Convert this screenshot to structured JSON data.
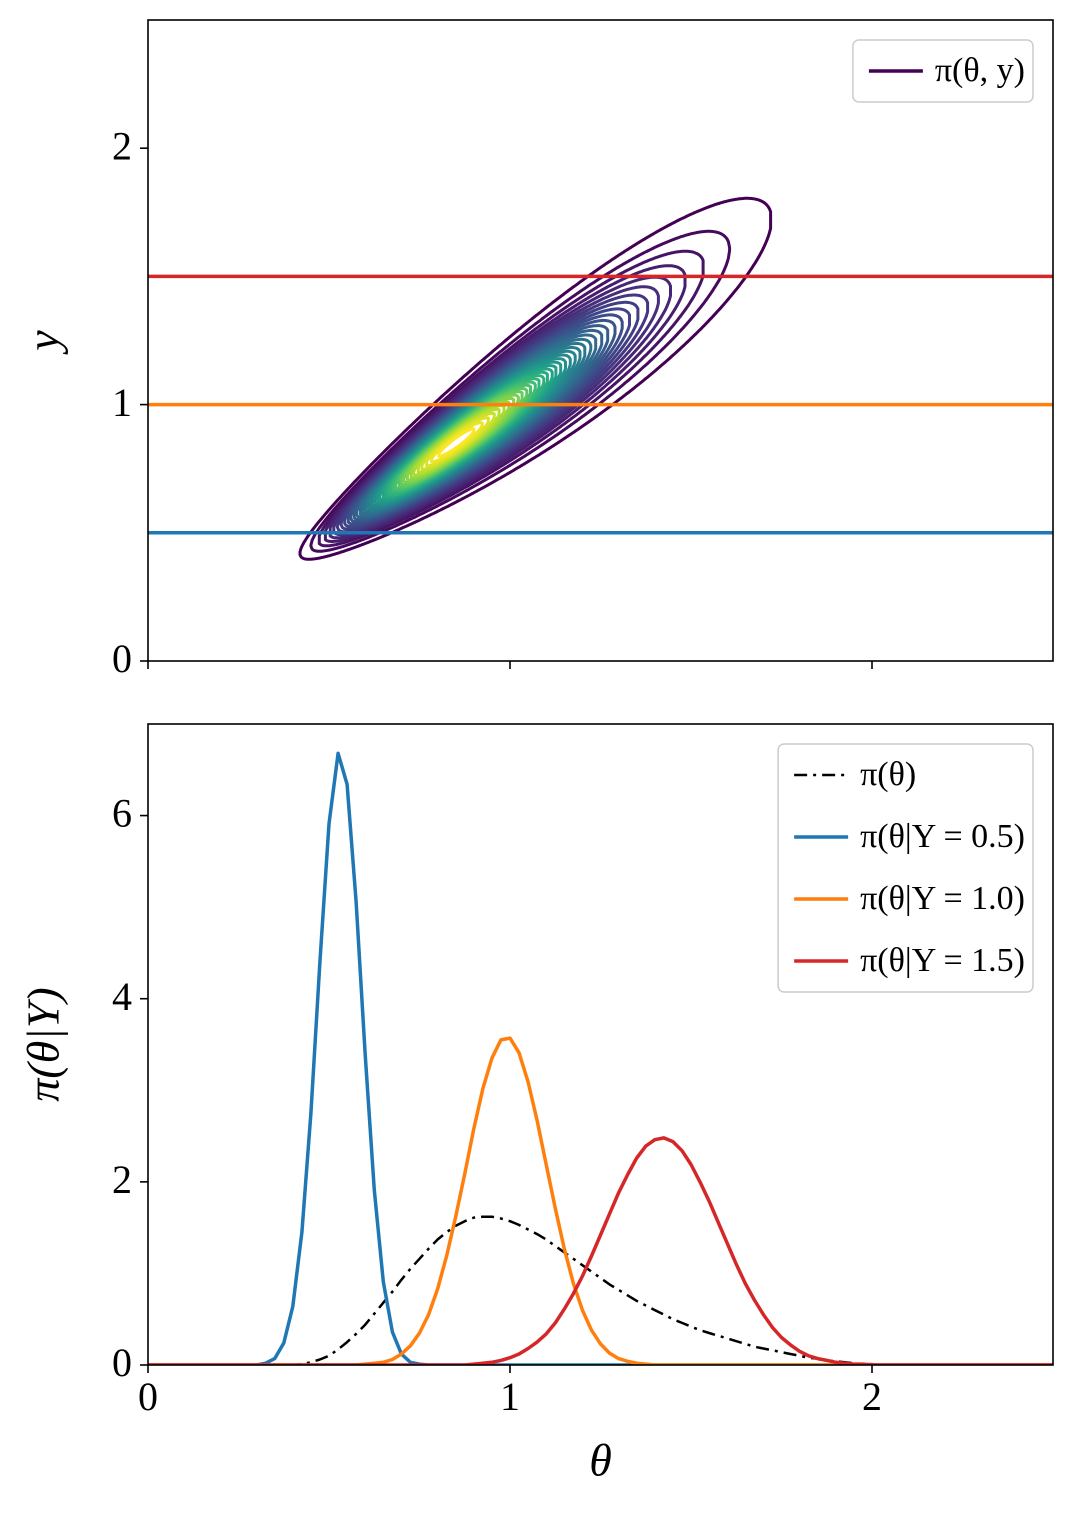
{
  "chart_data": [
    {
      "type": "contour",
      "ylabel": "y",
      "xlim": [
        0,
        2.5
      ],
      "ylim": [
        0,
        2.5
      ],
      "xticks": [
        0,
        1,
        2
      ],
      "yticks": [
        0,
        1,
        2
      ],
      "show_xtick_labels": false,
      "series": [
        {
          "name": "π(θ, y)",
          "color": "#440154"
        }
      ],
      "hlines": [
        {
          "y": 0.5,
          "color": "#1f77b4"
        },
        {
          "y": 1,
          "color": "#ff7f0e"
        },
        {
          "y": 1.5,
          "color": "#d62728"
        }
      ],
      "legend": "upper right"
    },
    {
      "type": "line",
      "xlabel": "θ",
      "ylabel": "π(θ|Y)",
      "xlim": [
        0,
        2.5
      ],
      "ylim": [
        0,
        7
      ],
      "xticks": [
        0,
        1,
        2
      ],
      "yticks": [
        0,
        2,
        4,
        6
      ],
      "x": [
        0,
        0.3,
        0.325,
        0.35,
        0.375,
        0.4,
        0.425,
        0.45,
        0.475,
        0.5,
        0.525,
        0.55,
        0.575,
        0.6,
        0.625,
        0.65,
        0.675,
        0.7,
        0.725,
        0.75,
        0.775,
        0.8,
        0.825,
        0.85,
        0.875,
        0.9,
        0.925,
        0.95,
        0.975,
        1,
        1.025,
        1.05,
        1.075,
        1.1,
        1.125,
        1.15,
        1.175,
        1.2,
        1.225,
        1.25,
        1.275,
        1.3,
        1.325,
        1.35,
        1.375,
        1.4,
        1.425,
        1.45,
        1.475,
        1.5,
        1.525,
        1.55,
        1.575,
        1.6,
        1.625,
        1.65,
        1.675,
        1.7,
        1.725,
        1.75,
        1.775,
        1.8,
        1.825,
        1.85,
        1.875,
        1.9,
        1.925,
        1.95,
        1.975,
        2,
        2.025,
        2.05,
        2.075,
        2.1,
        2.5
      ],
      "series": [
        {
          "name": "π(θ)",
          "color": "#000000",
          "linestyle": "dashdot",
          "values": [
            0,
            0,
            0,
            0,
            0,
            0,
            0.01,
            0.03,
            0.06,
            0.1,
            0.17,
            0.25,
            0.34,
            0.44,
            0.56,
            0.68,
            0.8,
            0.93,
            1.05,
            1.16,
            1.27,
            1.37,
            1.45,
            1.52,
            1.57,
            1.61,
            1.62,
            1.62,
            1.6,
            1.57,
            1.53,
            1.48,
            1.43,
            1.37,
            1.3,
            1.23,
            1.16,
            1.09,
            1.02,
            0.95,
            0.88,
            0.82,
            0.76,
            0.7,
            0.65,
            0.6,
            0.55,
            0.5,
            0.46,
            0.42,
            0.38,
            0.35,
            0.32,
            0.29,
            0.26,
            0.23,
            0.2,
            0.18,
            0.16,
            0.14,
            0.12,
            0.1,
            0.08,
            0.07,
            0.05,
            0.04,
            0.03,
            0.02,
            0.01,
            0.01,
            0,
            0,
            0,
            0,
            0
          ]
        },
        {
          "name": "π(θ|Y = 0.5)",
          "color": "#1f77b4",
          "linestyle": "solid",
          "values": [
            0,
            0,
            0.02,
            0.07,
            0.24,
            0.64,
            1.45,
            2.75,
            4.4,
            5.91,
            6.68,
            6.34,
            5.06,
            3.39,
            1.91,
            0.91,
            0.36,
            0.12,
            0.03,
            0.01,
            0,
            0,
            0,
            0,
            0,
            0,
            0,
            0,
            0,
            0,
            0,
            0,
            0,
            0,
            0,
            0,
            0,
            0,
            0,
            0,
            0,
            0,
            0,
            0,
            0,
            0,
            0,
            0,
            0,
            0,
            0,
            0,
            0,
            0,
            0,
            0,
            0,
            0,
            0,
            0,
            0,
            0,
            0,
            0,
            0,
            0,
            0,
            0,
            0,
            0,
            0,
            0,
            0,
            0,
            0
          ]
        },
        {
          "name": "π(θ|Y = 1.0)",
          "color": "#ff7f0e",
          "linestyle": "solid",
          "values": [
            0,
            0,
            0,
            0,
            0,
            0,
            0,
            0,
            0,
            0,
            0,
            0,
            0,
            0.01,
            0.02,
            0.03,
            0.06,
            0.12,
            0.21,
            0.35,
            0.55,
            0.83,
            1.19,
            1.62,
            2.09,
            2.58,
            3.02,
            3.35,
            3.55,
            3.57,
            3.41,
            3.09,
            2.67,
            2.19,
            1.71,
            1.27,
            0.89,
            0.6,
            0.38,
            0.23,
            0.13,
            0.07,
            0.04,
            0.02,
            0.01,
            0,
            0,
            0,
            0,
            0,
            0,
            0,
            0,
            0,
            0,
            0,
            0,
            0,
            0,
            0,
            0,
            0,
            0,
            0,
            0,
            0,
            0,
            0,
            0,
            0,
            0,
            0,
            0,
            0,
            0
          ]
        },
        {
          "name": "π(θ|Y = 1.5)",
          "color": "#d62728",
          "linestyle": "solid",
          "values": [
            0,
            0,
            0,
            0,
            0,
            0,
            0,
            0,
            0,
            0,
            0,
            0,
            0,
            0,
            0,
            0,
            0,
            0,
            0,
            0,
            0,
            0,
            0,
            0,
            0,
            0.01,
            0.02,
            0.03,
            0.05,
            0.08,
            0.12,
            0.18,
            0.25,
            0.34,
            0.46,
            0.61,
            0.78,
            0.97,
            1.19,
            1.42,
            1.65,
            1.88,
            2.08,
            2.26,
            2.39,
            2.46,
            2.48,
            2.44,
            2.34,
            2.19,
            2,
            1.79,
            1.56,
            1.33,
            1.1,
            0.89,
            0.71,
            0.55,
            0.41,
            0.3,
            0.22,
            0.15,
            0.1,
            0.07,
            0.05,
            0.03,
            0.02,
            0.01,
            0.01,
            0,
            0,
            0,
            0,
            0,
            0
          ]
        }
      ],
      "legend": "upper right"
    }
  ]
}
